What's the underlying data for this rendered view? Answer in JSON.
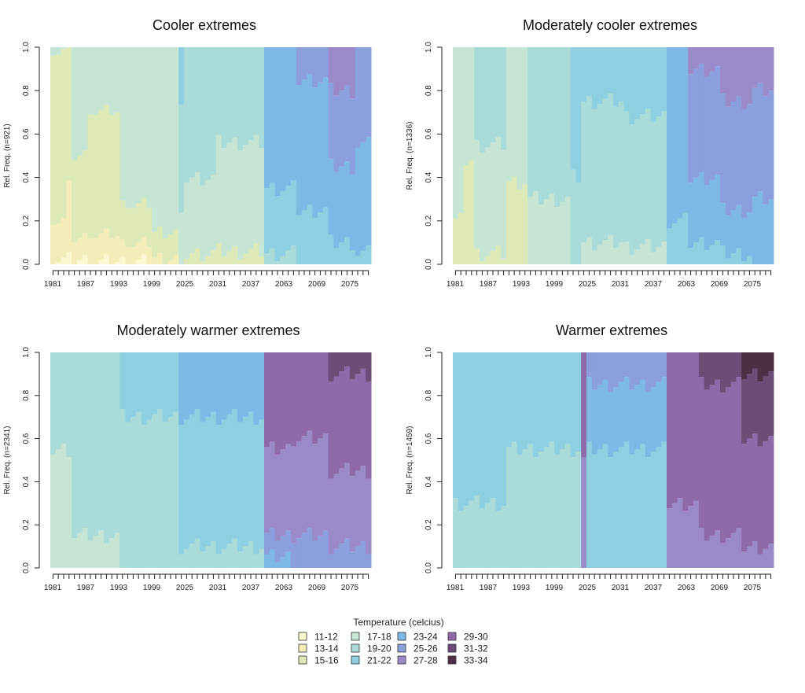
{
  "colors": {
    "11-12": "#FBF7D0",
    "13-14": "#F3EDB8",
    "15-16": "#DDE9B6",
    "17-18": "#C6E5D4",
    "19-20": "#A9DBD8",
    "21-22": "#8ECFE2",
    "23-24": "#7EB8E4",
    "25-26": "#8A9FDB",
    "27-28": "#9B8AC9",
    "29-30": "#8F6AAB",
    "31-32": "#6E4C78",
    "33-34": "#4E2E45"
  },
  "legend": {
    "title": "Temperature (celcius)",
    "items": [
      "11-12",
      "13-14",
      "15-16",
      "17-18",
      "19-20",
      "21-22",
      "23-24",
      "25-26",
      "27-28",
      "29-30",
      "31-32",
      "33-34"
    ]
  },
  "chart_data": [
    {
      "type": "bar",
      "stacked": true,
      "title": "Cooler extremes",
      "ylabel": "Rel. Freq. (n=921)",
      "ylim": [
        0,
        1
      ],
      "yticks": [
        "0.0",
        "0.2",
        "0.4",
        "0.6",
        "0.8",
        "1.0"
      ],
      "xtick_labels": [
        "1981",
        "1987",
        "1993",
        "1999",
        "2025",
        "2031",
        "2037",
        "2063",
        "2069",
        "2075"
      ],
      "n_bars": 60,
      "segments": [
        {
          "from": 0,
          "to": 3,
          "stack": [
            [
              "11-12",
              0.02
            ],
            [
              "13-14",
              0.18
            ],
            [
              "15-16",
              0.78
            ],
            [
              "17-18",
              0.02
            ]
          ]
        },
        {
          "from": 3,
          "to": 4,
          "stack": [
            [
              "11-12",
              0.02
            ],
            [
              "13-14",
              0.33
            ],
            [
              "15-16",
              0.65
            ]
          ]
        },
        {
          "from": 4,
          "to": 7,
          "stack": [
            [
              "11-12",
              0.02
            ],
            [
              "13-14",
              0.1
            ],
            [
              "15-16",
              0.38
            ],
            [
              "17-18",
              0.5
            ]
          ]
        },
        {
          "from": 7,
          "to": 13,
          "stack": [
            [
              "11-12",
              0.01
            ],
            [
              "13-14",
              0.12
            ],
            [
              "15-16",
              0.57
            ],
            [
              "17-18",
              0.3
            ]
          ]
        },
        {
          "from": 13,
          "to": 19,
          "stack": [
            [
              "11-12",
              0.01
            ],
            [
              "13-14",
              0.08
            ],
            [
              "15-16",
              0.18
            ],
            [
              "17-18",
              0.73
            ]
          ]
        },
        {
          "from": 19,
          "to": 24,
          "stack": [
            [
              "13-14",
              0.03
            ],
            [
              "15-16",
              0.12
            ],
            [
              "17-18",
              0.85
            ]
          ]
        },
        {
          "from": 24,
          "to": 25,
          "stack": [
            [
              "17-18",
              0.2
            ],
            [
              "19-20",
              0.5
            ],
            [
              "21-22",
              0.3
            ]
          ]
        },
        {
          "from": 25,
          "to": 31,
          "stack": [
            [
              "15-16",
              0.05
            ],
            [
              "17-18",
              0.35
            ],
            [
              "19-20",
              0.6
            ]
          ]
        },
        {
          "from": 31,
          "to": 40,
          "stack": [
            [
              "15-16",
              0.06
            ],
            [
              "17-18",
              0.5
            ],
            [
              "19-20",
              0.44
            ]
          ]
        },
        {
          "from": 40,
          "to": 46,
          "stack": [
            [
              "19-20",
              0.05
            ],
            [
              "21-22",
              0.3
            ],
            [
              "23-24",
              0.65
            ]
          ]
        },
        {
          "from": 46,
          "to": 52,
          "stack": [
            [
              "21-22",
              0.25
            ],
            [
              "23-24",
              0.6
            ],
            [
              "25-26",
              0.15
            ]
          ]
        },
        {
          "from": 52,
          "to": 57,
          "stack": [
            [
              "21-22",
              0.1
            ],
            [
              "23-24",
              0.35
            ],
            [
              "25-26",
              0.35
            ],
            [
              "27-28",
              0.2
            ]
          ]
        },
        {
          "from": 57,
          "to": 60,
          "stack": [
            [
              "21-22",
              0.05
            ],
            [
              "23-24",
              0.5
            ],
            [
              "25-26",
              0.45
            ]
          ]
        }
      ]
    },
    {
      "type": "bar",
      "stacked": true,
      "title": "Moderately cooler extremes",
      "ylabel": "Rel. Freq. (n=1336)",
      "ylim": [
        0,
        1
      ],
      "yticks": [
        "0.0",
        "0.2",
        "0.4",
        "0.6",
        "0.8",
        "1.0"
      ],
      "xtick_labels": [
        "1981",
        "1987",
        "1993",
        "1999",
        "2025",
        "2031",
        "2037",
        "2063",
        "2069",
        "2075"
      ],
      "n_bars": 60,
      "segments": [
        {
          "from": 0,
          "to": 2,
          "stack": [
            [
              "15-16",
              0.2
            ],
            [
              "17-18",
              0.8
            ]
          ]
        },
        {
          "from": 2,
          "to": 4,
          "stack": [
            [
              "15-16",
              0.48
            ],
            [
              "17-18",
              0.52
            ]
          ]
        },
        {
          "from": 4,
          "to": 10,
          "stack": [
            [
              "15-16",
              0.05
            ],
            [
              "17-18",
              0.5
            ],
            [
              "19-20",
              0.45
            ]
          ]
        },
        {
          "from": 10,
          "to": 14,
          "stack": [
            [
              "15-16",
              0.38
            ],
            [
              "17-18",
              0.62
            ]
          ]
        },
        {
          "from": 14,
          "to": 22,
          "stack": [
            [
              "17-18",
              0.3
            ],
            [
              "19-20",
              0.7
            ]
          ]
        },
        {
          "from": 22,
          "to": 24,
          "stack": [
            [
              "19-20",
              0.4
            ],
            [
              "21-22",
              0.6
            ]
          ]
        },
        {
          "from": 24,
          "to": 32,
          "stack": [
            [
              "17-18",
              0.1
            ],
            [
              "19-20",
              0.65
            ],
            [
              "21-22",
              0.25
            ]
          ]
        },
        {
          "from": 32,
          "to": 40,
          "stack": [
            [
              "17-18",
              0.08
            ],
            [
              "19-20",
              0.6
            ],
            [
              "21-22",
              0.32
            ]
          ]
        },
        {
          "from": 40,
          "to": 44,
          "stack": [
            [
              "21-22",
              0.2
            ],
            [
              "23-24",
              0.8
            ]
          ]
        },
        {
          "from": 44,
          "to": 50,
          "stack": [
            [
              "21-22",
              0.1
            ],
            [
              "23-24",
              0.3
            ],
            [
              "25-26",
              0.5
            ],
            [
              "27-28",
              0.1
            ]
          ]
        },
        {
          "from": 50,
          "to": 56,
          "stack": [
            [
              "21-22",
              0.05
            ],
            [
              "23-24",
              0.2
            ],
            [
              "25-26",
              0.5
            ],
            [
              "27-28",
              0.25
            ]
          ]
        },
        {
          "from": 56,
          "to": 60,
          "stack": [
            [
              "23-24",
              0.3
            ],
            [
              "25-26",
              0.5
            ],
            [
              "27-28",
              0.2
            ]
          ]
        }
      ]
    },
    {
      "type": "bar",
      "stacked": true,
      "title": "Moderately warmer extremes",
      "ylabel": "Rel. Freq. (n=2341)",
      "ylim": [
        0,
        1
      ],
      "yticks": [
        "0.0",
        "0.2",
        "0.4",
        "0.6",
        "0.8",
        "1.0"
      ],
      "xtick_labels": [
        "1981",
        "1987",
        "1993",
        "1999",
        "2025",
        "2031",
        "2037",
        "2063",
        "2069",
        "2075"
      ],
      "n_bars": 60,
      "segments": [
        {
          "from": 0,
          "to": 4,
          "stack": [
            [
              "17-18",
              0.55
            ],
            [
              "19-20",
              0.45
            ]
          ]
        },
        {
          "from": 4,
          "to": 13,
          "stack": [
            [
              "17-18",
              0.15
            ],
            [
              "19-20",
              0.85
            ]
          ]
        },
        {
          "from": 13,
          "to": 24,
          "stack": [
            [
              "19-20",
              0.7
            ],
            [
              "21-22",
              0.3
            ]
          ]
        },
        {
          "from": 24,
          "to": 40,
          "stack": [
            [
              "19-20",
              0.1
            ],
            [
              "21-22",
              0.6
            ],
            [
              "23-24",
              0.3
            ]
          ]
        },
        {
          "from": 40,
          "to": 45,
          "stack": [
            [
              "23-24",
              0.05
            ],
            [
              "25-26",
              0.1
            ],
            [
              "27-28",
              0.4
            ],
            [
              "29-30",
              0.45
            ]
          ]
        },
        {
          "from": 45,
          "to": 52,
          "stack": [
            [
              "25-26",
              0.15
            ],
            [
              "27-28",
              0.45
            ],
            [
              "29-30",
              0.4
            ]
          ]
        },
        {
          "from": 52,
          "to": 60,
          "stack": [
            [
              "25-26",
              0.1
            ],
            [
              "27-28",
              0.35
            ],
            [
              "29-30",
              0.45
            ],
            [
              "31-32",
              0.1
            ]
          ]
        }
      ]
    },
    {
      "type": "bar",
      "stacked": true,
      "title": "Warmer extremes",
      "ylabel": "Rel. Freq. (n=1459)",
      "ylim": [
        0,
        1
      ],
      "yticks": [
        "0.0",
        "0.2",
        "0.4",
        "0.6",
        "0.8",
        "1.0"
      ],
      "xtick_labels": [
        "1981",
        "1987",
        "1993",
        "1999",
        "2025",
        "2031",
        "2037",
        "2063",
        "2069",
        "2075"
      ],
      "n_bars": 60,
      "segments": [
        {
          "from": 0,
          "to": 10,
          "stack": [
            [
              "19-20",
              0.3
            ],
            [
              "21-22",
              0.7
            ]
          ]
        },
        {
          "from": 10,
          "to": 24,
          "stack": [
            [
              "19-20",
              0.55
            ],
            [
              "21-22",
              0.45
            ]
          ]
        },
        {
          "from": 24,
          "to": 25,
          "stack": [
            [
              "27-28",
              0.5
            ],
            [
              "29-30",
              0.5
            ]
          ]
        },
        {
          "from": 25,
          "to": 40,
          "stack": [
            [
              "21-22",
              0.55
            ],
            [
              "23-24",
              0.3
            ],
            [
              "25-26",
              0.15
            ]
          ]
        },
        {
          "from": 40,
          "to": 46,
          "stack": [
            [
              "27-28",
              0.3
            ],
            [
              "29-30",
              0.7
            ]
          ]
        },
        {
          "from": 46,
          "to": 54,
          "stack": [
            [
              "27-28",
              0.15
            ],
            [
              "29-30",
              0.7
            ],
            [
              "31-32",
              0.15
            ]
          ]
        },
        {
          "from": 54,
          "to": 60,
          "stack": [
            [
              "27-28",
              0.1
            ],
            [
              "29-30",
              0.5
            ],
            [
              "31-32",
              0.3
            ],
            [
              "33-34",
              0.1
            ]
          ]
        }
      ]
    }
  ]
}
